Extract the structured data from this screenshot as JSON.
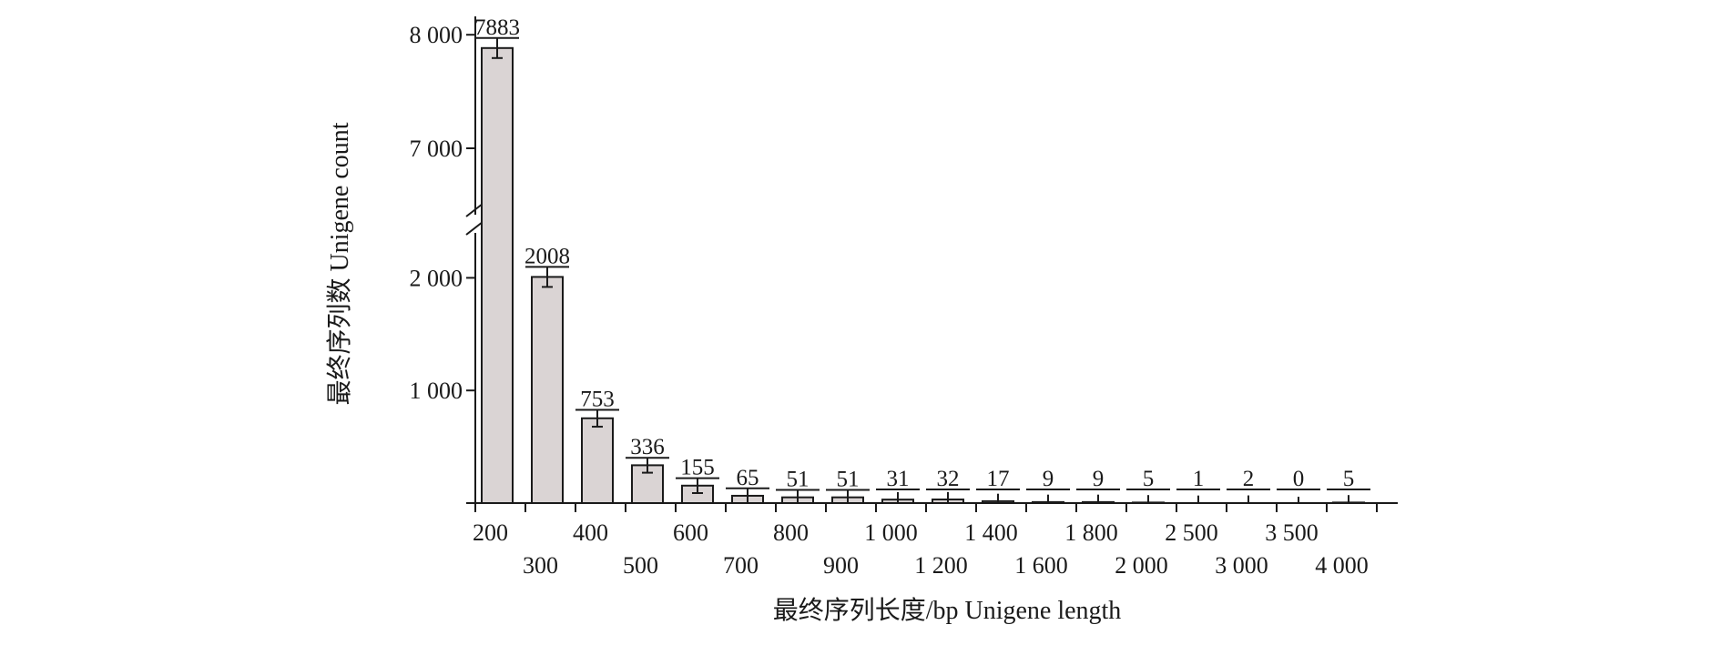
{
  "chart_data": {
    "type": "bar",
    "title": "",
    "xlabel": "最终序列长度/bp Unigene length",
    "ylabel": "最终序列数 Unigene count",
    "categories": [
      "200",
      "300",
      "400",
      "500",
      "600",
      "700",
      "800",
      "900",
      "1 000",
      "1 200",
      "1 400",
      "1 600",
      "1 800",
      "2 000",
      "2 500",
      "3 000",
      "3 500",
      "4 000"
    ],
    "values": [
      7883,
      2008,
      753,
      336,
      155,
      65,
      51,
      51,
      31,
      32,
      17,
      9,
      9,
      5,
      1,
      2,
      0,
      5
    ],
    "value_labels": [
      "7883",
      "2008",
      "753",
      "336",
      "155",
      "65",
      "51",
      "51",
      "31",
      "32",
      "17",
      "9",
      "9",
      "5",
      "1",
      "2",
      "0",
      "5"
    ],
    "y_axis_broken": true,
    "ylim_lower": [
      0,
      2400
    ],
    "ylim_upper": [
      6600,
      8200
    ],
    "y_ticks": [
      {
        "value": 1000,
        "label": "1 000"
      },
      {
        "value": 2000,
        "label": "2 000"
      },
      {
        "value": 7000,
        "label": "7 000"
      },
      {
        "value": 8000,
        "label": "8 000"
      }
    ],
    "error_bars": true,
    "bar_color": "#dad4d4",
    "grid": false,
    "legend": "none"
  }
}
